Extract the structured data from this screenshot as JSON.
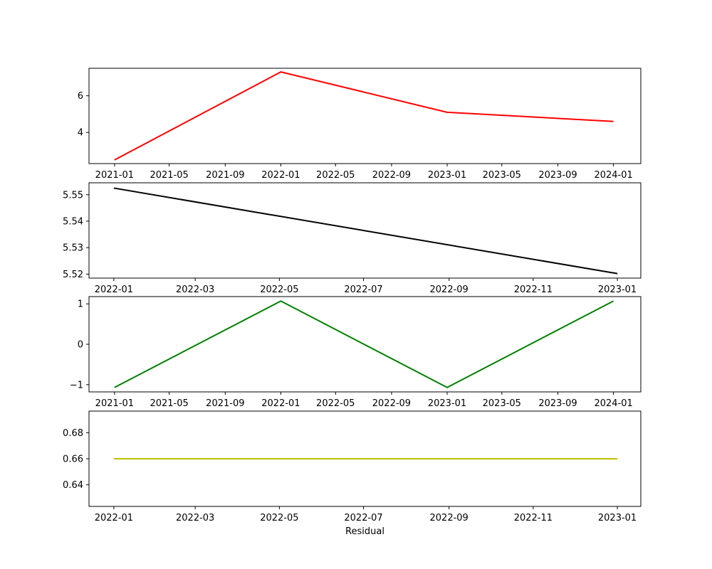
{
  "chart_data": [
    {
      "type": "line",
      "title": "",
      "xlabel": "",
      "ylabel": "",
      "grid": false,
      "x_ticks": [
        "2021-01",
        "2021-05",
        "2021-09",
        "2022-01",
        "2022-05",
        "2022-09",
        "2023-01",
        "2023-05",
        "2023-09",
        "2024-01"
      ],
      "y_ticks": [
        "4",
        "6"
      ],
      "xlim": [
        "2020-11-06",
        "2024-03-01"
      ],
      "ylim": [
        2.3,
        7.5
      ],
      "series": [
        {
          "color": "#ff0000",
          "x": [
            "2021-01-01",
            "2022-01-01",
            "2023-01-01",
            "2024-01-01"
          ],
          "y": [
            2.5,
            7.3,
            5.1,
            4.6
          ]
        }
      ]
    },
    {
      "type": "line",
      "title": "",
      "xlabel": "",
      "ylabel": "",
      "grid": false,
      "x_ticks": [
        "2022-01",
        "2022-03",
        "2022-05",
        "2022-07",
        "2022-09",
        "2022-11",
        "2023-01"
      ],
      "y_ticks": [
        "5.52",
        "5.53",
        "5.54",
        "5.55"
      ],
      "xlim": [
        "2021-12-14",
        "2023-01-18"
      ],
      "ylim": [
        5.5185,
        5.5545
      ],
      "series": [
        {
          "color": "#000000",
          "x": [
            "2022-01-01",
            "2023-01-01"
          ],
          "y": [
            5.5525,
            5.5202
          ]
        }
      ]
    },
    {
      "type": "line",
      "title": "",
      "xlabel": "",
      "ylabel": "",
      "grid": false,
      "x_ticks": [
        "2021-01",
        "2021-05",
        "2021-09",
        "2022-01",
        "2022-05",
        "2022-09",
        "2023-01",
        "2023-05",
        "2023-09",
        "2024-01"
      ],
      "y_ticks": [
        "−1",
        "0",
        "1"
      ],
      "xlim": [
        "2020-11-06",
        "2024-03-01"
      ],
      "ylim": [
        -1.18,
        1.18
      ],
      "series": [
        {
          "color": "#008000",
          "x": [
            "2021-01-01",
            "2022-01-01",
            "2023-01-01",
            "2024-01-01"
          ],
          "y": [
            -1.07,
            1.07,
            -1.07,
            1.07
          ]
        }
      ]
    },
    {
      "type": "line",
      "title": "",
      "xlabel": "Residual",
      "ylabel": "",
      "grid": false,
      "x_ticks": [
        "2022-01",
        "2022-03",
        "2022-05",
        "2022-07",
        "2022-09",
        "2022-11",
        "2023-01"
      ],
      "y_ticks": [
        "0.64",
        "0.66",
        "0.68"
      ],
      "xlim": [
        "2021-12-14",
        "2023-01-18"
      ],
      "ylim": [
        0.6234,
        0.6966
      ],
      "series": [
        {
          "color": "#bfbf00",
          "x": [
            "2022-01-01",
            "2023-01-01"
          ],
          "y": [
            0.66,
            0.66
          ]
        }
      ]
    }
  ]
}
